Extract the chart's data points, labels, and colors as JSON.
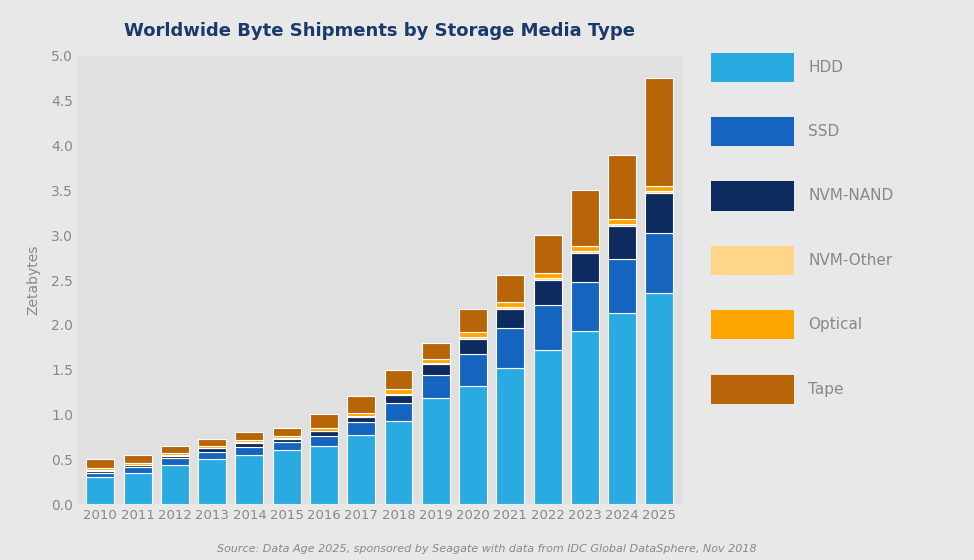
{
  "years": [
    2010,
    2011,
    2012,
    2013,
    2014,
    2015,
    2016,
    2017,
    2018,
    2019,
    2020,
    2021,
    2022,
    2023,
    2024,
    2025
  ],
  "HDD": [
    0.3,
    0.35,
    0.44,
    0.5,
    0.55,
    0.6,
    0.65,
    0.77,
    0.93,
    1.18,
    1.32,
    1.52,
    1.72,
    1.93,
    2.13,
    2.35
  ],
  "SSD": [
    0.05,
    0.06,
    0.07,
    0.08,
    0.09,
    0.09,
    0.11,
    0.14,
    0.2,
    0.26,
    0.35,
    0.44,
    0.5,
    0.55,
    0.6,
    0.68
  ],
  "NVM_NAND": [
    0.02,
    0.02,
    0.03,
    0.04,
    0.04,
    0.04,
    0.05,
    0.06,
    0.09,
    0.12,
    0.17,
    0.22,
    0.28,
    0.32,
    0.37,
    0.44
  ],
  "NVM_Other": [
    0.01,
    0.01,
    0.01,
    0.01,
    0.01,
    0.01,
    0.01,
    0.01,
    0.01,
    0.01,
    0.02,
    0.02,
    0.02,
    0.02,
    0.02,
    0.02
  ],
  "Optical": [
    0.02,
    0.02,
    0.02,
    0.02,
    0.02,
    0.02,
    0.03,
    0.04,
    0.05,
    0.05,
    0.06,
    0.06,
    0.06,
    0.06,
    0.06,
    0.06
  ],
  "Tape": [
    0.1,
    0.09,
    0.08,
    0.07,
    0.09,
    0.09,
    0.15,
    0.18,
    0.22,
    0.18,
    0.26,
    0.3,
    0.42,
    0.62,
    0.72,
    1.2
  ],
  "colors": {
    "HDD": "#29ABE2",
    "SSD": "#1565C0",
    "NVM_NAND": "#0D2B5E",
    "NVM_Other": "#FFD58A",
    "Optical": "#FFA500",
    "Tape": "#B8650A"
  },
  "title": "Worldwide Byte Shipments by Storage Media Type",
  "ylabel": "Zetabytes",
  "ylim": [
    0,
    5.0
  ],
  "yticks": [
    0,
    0.5,
    1.0,
    1.5,
    2.0,
    2.5,
    3.0,
    3.5,
    4.0,
    4.5,
    5.0
  ],
  "source_text": "Source: Data Age 2025, sponsored by Seagate with data from IDC Global DataSphere, Nov 2018",
  "bg_color": "#E8E8E8",
  "plot_bg_color": "#E0E0E0",
  "title_color": "#1a3a6b",
  "bar_width": 0.75
}
